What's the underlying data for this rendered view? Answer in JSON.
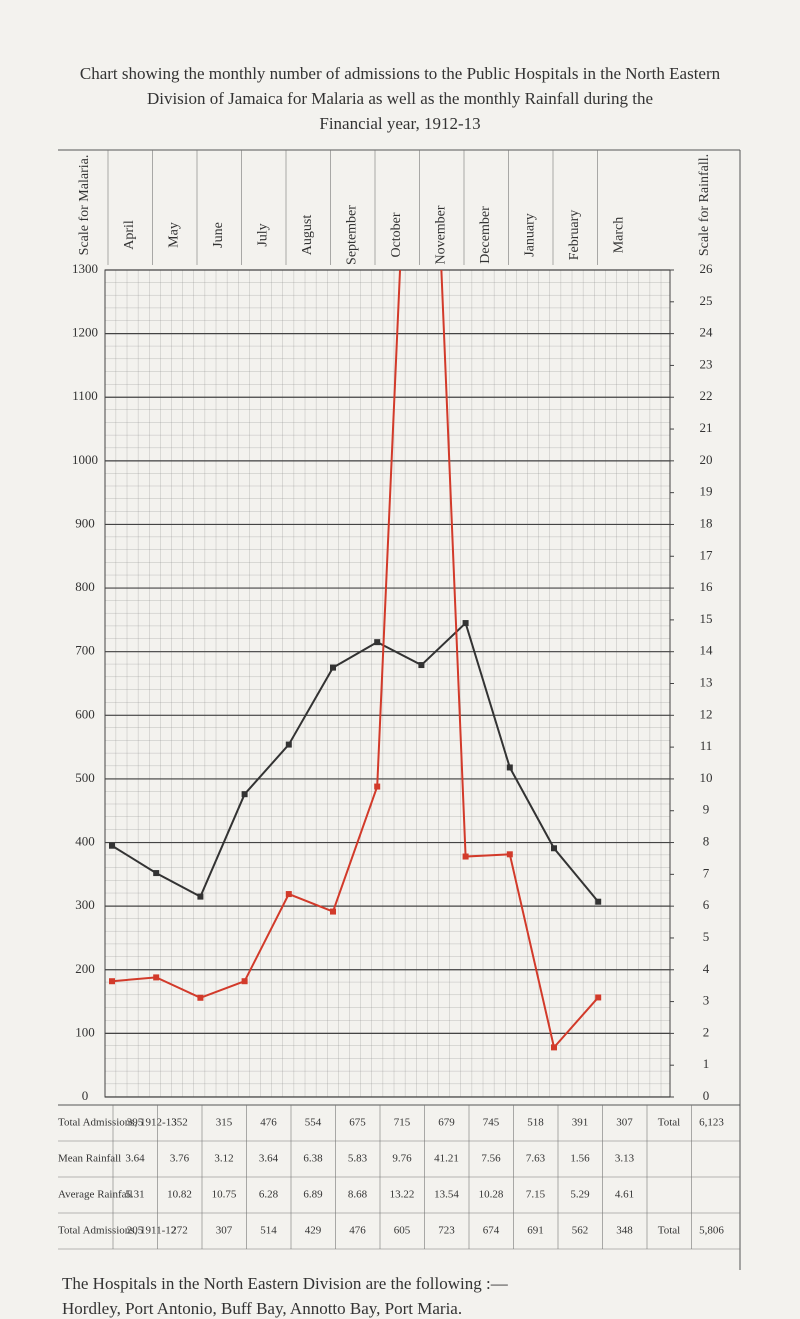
{
  "chart_data": {
    "type": "line",
    "title": "Chart showing the monthly number of admissions to the Public Hospitals in the North Eastern",
    "subtitle": "Division of Jamaica for Malaria as well as the monthly Rainfall during the",
    "subtitle2": "Financial year, 1912-13",
    "ylabel": "Scale for Malaria.",
    "y2label": "Scale for Rainfall.",
    "categories": [
      "April",
      "May",
      "June",
      "July",
      "August",
      "September",
      "October",
      "November",
      "December",
      "January",
      "February",
      "March"
    ],
    "series": [
      {
        "name": "Total Admissions, 1912-13",
        "color": "#333333",
        "values": [
          395,
          352,
          315,
          476,
          554,
          675,
          715,
          679,
          745,
          518,
          391,
          307
        ]
      },
      {
        "name": "Mean Rainfall",
        "color": "#d23a2a",
        "axis": "y2",
        "values": [
          3.64,
          3.76,
          3.12,
          3.64,
          6.38,
          5.83,
          9.76,
          41.21,
          7.56,
          7.63,
          1.56,
          3.13
        ]
      }
    ],
    "ylim": [
      0,
      1300
    ],
    "yticks": [
      0,
      100,
      200,
      300,
      400,
      500,
      600,
      700,
      800,
      900,
      1000,
      1100,
      1200,
      1300
    ],
    "y2lim": [
      0,
      26
    ],
    "y2ticks": [
      0,
      1,
      2,
      3,
      4,
      5,
      6,
      7,
      8,
      9,
      10,
      11,
      12,
      13,
      14,
      15,
      16,
      17,
      18,
      19,
      20,
      21,
      22,
      23,
      24,
      25,
      26
    ],
    "grid": true,
    "total_label": "Total",
    "total_1912": "6,123"
  },
  "table": {
    "avg_label": "Average Rainfall",
    "avg_values": [
      "5.31",
      "10.82",
      "10.75",
      "6.28",
      "6.89",
      "8.68",
      "13.22",
      "13.54",
      "10.28",
      "7.15",
      "5.29",
      "4.61"
    ],
    "prev_label": "Total Admissions, 1911-12",
    "prev_values": [
      "205",
      "272",
      "307",
      "514",
      "429",
      "476",
      "605",
      "723",
      "674",
      "691",
      "562",
      "348"
    ],
    "prev_total_label": "Total",
    "prev_total": "5,806"
  },
  "footer": {
    "line1": "The Hospitals in the North Eastern Division are the following :—",
    "line2": "Hordley, Port Antonio, Buff Bay, Annotto Bay, Port Maria."
  }
}
